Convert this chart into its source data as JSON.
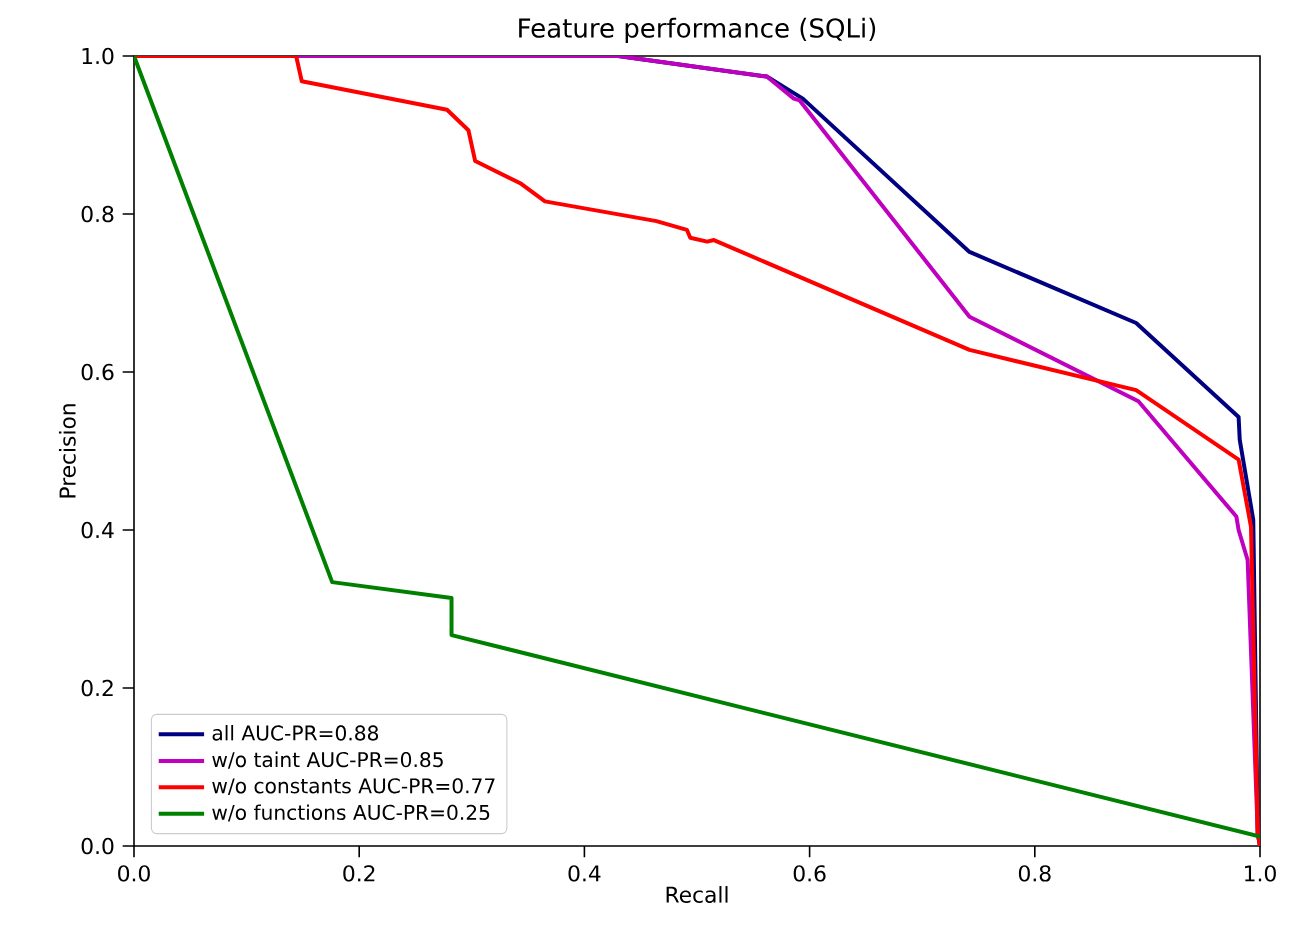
{
  "chart_data": {
    "type": "line",
    "title": "Feature performance (SQLi)",
    "xlabel": "Recall",
    "ylabel": "Precision",
    "xlim": [
      0,
      1
    ],
    "ylim": [
      0,
      1
    ],
    "xticks": [
      {
        "value": 0,
        "label": "0.0"
      },
      {
        "value": 0.2,
        "label": "0.2"
      },
      {
        "value": 0.4,
        "label": "0.4"
      },
      {
        "value": 0.6,
        "label": "0.6"
      },
      {
        "value": 0.8,
        "label": "0.8"
      },
      {
        "value": 1,
        "label": "1.0"
      }
    ],
    "yticks": [
      {
        "value": 0,
        "label": "0.0"
      },
      {
        "value": 0.2,
        "label": "0.2"
      },
      {
        "value": 0.4,
        "label": "0.4"
      },
      {
        "value": 0.6,
        "label": "0.6"
      },
      {
        "value": 0.8,
        "label": "0.8"
      },
      {
        "value": 1,
        "label": "1.0"
      }
    ],
    "legend": "bottom left",
    "line_style": "solid",
    "grid": false,
    "series": [
      {
        "name": "all AUC-PR=0.88",
        "color": "#000080",
        "x": [
          0,
          0.43,
          0.562,
          0.586,
          0.594,
          0.742,
          0.89,
          0.981,
          0.982,
          0.994,
          0.998,
          1
        ],
        "values": [
          1,
          1,
          0.974,
          0.953,
          0.946,
          0.752,
          0.662,
          0.543,
          0.514,
          0.413,
          0.016,
          0
        ]
      },
      {
        "name": "w/o taint AUC-PR=0.85",
        "color": "#bf00bf",
        "x": [
          0,
          0.43,
          0.562,
          0.586,
          0.591,
          0.742,
          0.892,
          0.979,
          0.981,
          0.989,
          0.998,
          1
        ],
        "values": [
          1,
          1,
          0.974,
          0.946,
          0.944,
          0.67,
          0.563,
          0.417,
          0.4,
          0.362,
          0.016,
          0
        ]
      },
      {
        "name": "w/o constants AUC-PR=0.77",
        "color": "#ff0000",
        "x": [
          0,
          0.144,
          0.149,
          0.278,
          0.297,
          0.303,
          0.343,
          0.365,
          0.464,
          0.491,
          0.494,
          0.509,
          0.515,
          0.742,
          0.89,
          0.981,
          0.992,
          0.998,
          1
        ],
        "values": [
          1,
          1,
          0.968,
          0.932,
          0.906,
          0.867,
          0.839,
          0.816,
          0.791,
          0.78,
          0.77,
          0.765,
          0.767,
          0.628,
          0.577,
          0.489,
          0.404,
          0.016,
          0
        ]
      },
      {
        "name": "w/o functions AUC-PR=0.25",
        "color": "#008000",
        "x": [
          0,
          0.176,
          0.282,
          0.282,
          1
        ],
        "values": [
          1,
          0.334,
          0.314,
          0.267,
          0.012
        ]
      }
    ]
  }
}
